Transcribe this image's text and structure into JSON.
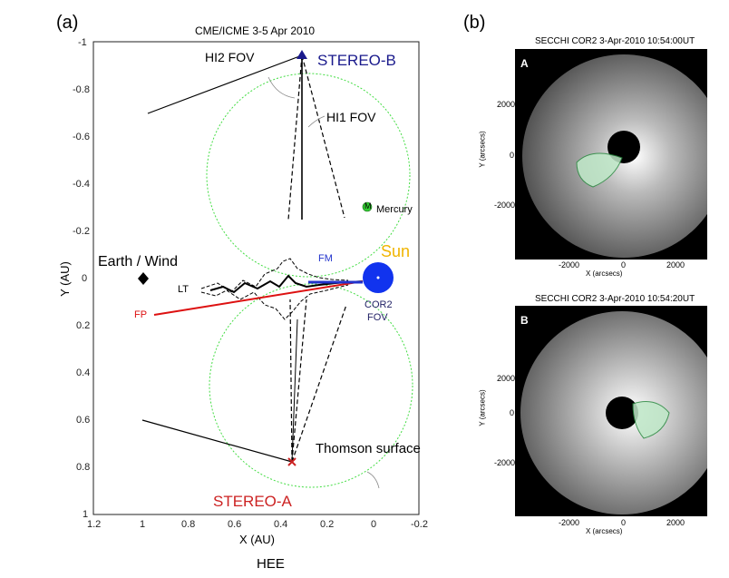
{
  "panel_a": {
    "label": "(a)",
    "title": "CME/ICME 3-5 Apr 2010",
    "xlabel": "X (AU)",
    "ylabel": "Y (AU)",
    "x_ticks": [
      "1.2",
      "1",
      "0.8",
      "0.6",
      "0.4",
      "0.2",
      "0",
      "-0.2"
    ],
    "y_ticks": [
      "-1",
      "-0.8",
      "-0.6",
      "-0.4",
      "-0.2",
      "0",
      "0.2",
      "0.4",
      "0.6",
      "0.8",
      "1"
    ],
    "annotations": {
      "hi2_fov": "HI2 FOV",
      "stereo_b": "STEREO-B",
      "hi1_fov": "HI1 FOV",
      "mercury_marker": "M",
      "mercury": "Mercury",
      "sun": "Sun",
      "fm": "FM",
      "earth_wind": "Earth / Wind",
      "lt": "LT",
      "fp": "FP",
      "cor2_fov_1": "COR2",
      "cor2_fov_2": "FOV",
      "thomson": "Thomson surface",
      "stereo_a": "STEREO-A"
    },
    "caption": "HEE",
    "colors": {
      "stereo_b": "#1a1a8c",
      "stereo_a": "#cc2222",
      "sun_label": "#f0b400",
      "fp": "#dd1111",
      "fm": "#2233cc",
      "thomson_circle": "#44dd44",
      "sun": "#1133ee"
    }
  },
  "panel_b": {
    "label": "(b)",
    "images": [
      {
        "title": "SECCHI COR2 3-Apr-2010 10:54:00UT",
        "letter": "A",
        "xlabel": "X (arcsecs)",
        "ylabel": "Y (arcsecs)",
        "x_ticks": [
          "-2000",
          "0",
          "2000"
        ],
        "y_ticks": [
          "2000",
          "0",
          "-2000"
        ]
      },
      {
        "title": "SECCHI COR2 3-Apr-2010 10:54:20UT",
        "letter": "B",
        "xlabel": "X (arcsecs)",
        "ylabel": "Y (arcsecs)",
        "x_ticks": [
          "-2000",
          "0",
          "2000"
        ],
        "y_ticks": [
          "2000",
          "0",
          "-2000"
        ]
      }
    ]
  }
}
